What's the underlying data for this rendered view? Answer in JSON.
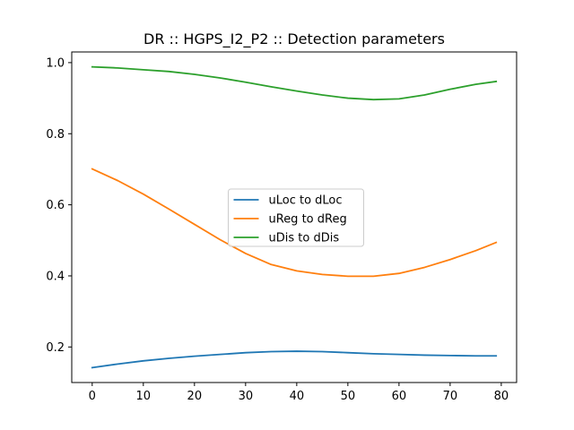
{
  "chart_data": {
    "type": "line",
    "title": "DR :: HGPS_I2_P2 ::  Detection parameters",
    "xlabel": "",
    "ylabel": "",
    "xlim": [
      -4,
      83
    ],
    "ylim": [
      0.1,
      1.03
    ],
    "xticks": [
      0,
      10,
      20,
      30,
      40,
      50,
      60,
      70,
      80
    ],
    "xtick_labels": [
      "0",
      "10",
      "20",
      "30",
      "40",
      "50",
      "60",
      "70",
      "80"
    ],
    "yticks": [
      0.2,
      0.4,
      0.6,
      0.8,
      1.0
    ],
    "ytick_labels": [
      "0.2",
      "0.4",
      "0.6",
      "0.8",
      "1.0"
    ],
    "grid": false,
    "legend_position": "center",
    "x": [
      0,
      5,
      10,
      15,
      20,
      25,
      30,
      35,
      40,
      45,
      50,
      55,
      60,
      65,
      70,
      75,
      79
    ],
    "series": [
      {
        "name": "uLoc to dLoc",
        "color": "#1f77b4",
        "values": [
          0.142,
          0.152,
          0.161,
          0.168,
          0.174,
          0.179,
          0.184,
          0.187,
          0.188,
          0.187,
          0.184,
          0.181,
          0.179,
          0.177,
          0.176,
          0.175,
          0.175
        ]
      },
      {
        "name": "uReg to dReg",
        "color": "#ff7f0e",
        "values": [
          0.701,
          0.668,
          0.63,
          0.588,
          0.545,
          0.502,
          0.463,
          0.432,
          0.414,
          0.404,
          0.399,
          0.399,
          0.407,
          0.424,
          0.446,
          0.471,
          0.494
        ]
      },
      {
        "name": "uDis to dDis",
        "color": "#2ca02c",
        "values": [
          0.988,
          0.985,
          0.98,
          0.975,
          0.967,
          0.957,
          0.945,
          0.932,
          0.92,
          0.909,
          0.9,
          0.896,
          0.898,
          0.909,
          0.925,
          0.939,
          0.947
        ]
      }
    ]
  }
}
